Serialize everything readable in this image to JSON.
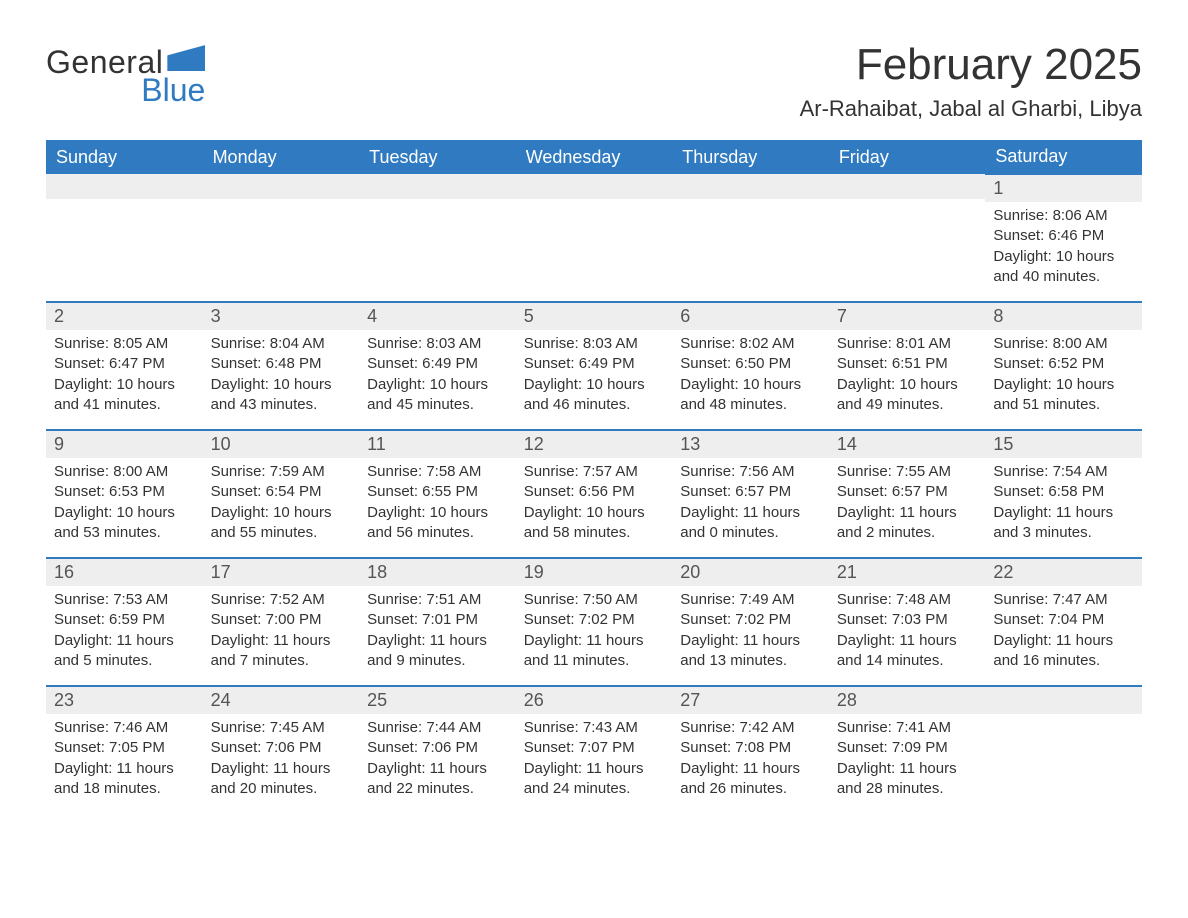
{
  "logo": {
    "word1": "General",
    "word2": "Blue"
  },
  "title": "February 2025",
  "location": "Ar-Rahaibat, Jabal al Gharbi, Libya",
  "colors": {
    "brand_blue": "#2f7ac0",
    "header_bg": "#2f7ac0",
    "header_text": "#ffffff",
    "daynum_bg": "#eeeeee",
    "daynum_text": "#555555",
    "body_text": "#333333",
    "row_divider": "#2f7ac0",
    "page_bg": "#ffffff"
  },
  "typography": {
    "title_fontsize": 44,
    "location_fontsize": 22,
    "dayname_fontsize": 18,
    "daynum_fontsize": 18,
    "body_fontsize": 15,
    "font_family": "Arial"
  },
  "layout": {
    "columns": 7,
    "rows": 5,
    "first_day_column_index": 6
  },
  "day_names": [
    "Sunday",
    "Monday",
    "Tuesday",
    "Wednesday",
    "Thursday",
    "Friday",
    "Saturday"
  ],
  "days": [
    {
      "n": 1,
      "sunrise": "8:06 AM",
      "sunset": "6:46 PM",
      "daylight": "10 hours and 40 minutes."
    },
    {
      "n": 2,
      "sunrise": "8:05 AM",
      "sunset": "6:47 PM",
      "daylight": "10 hours and 41 minutes."
    },
    {
      "n": 3,
      "sunrise": "8:04 AM",
      "sunset": "6:48 PM",
      "daylight": "10 hours and 43 minutes."
    },
    {
      "n": 4,
      "sunrise": "8:03 AM",
      "sunset": "6:49 PM",
      "daylight": "10 hours and 45 minutes."
    },
    {
      "n": 5,
      "sunrise": "8:03 AM",
      "sunset": "6:49 PM",
      "daylight": "10 hours and 46 minutes."
    },
    {
      "n": 6,
      "sunrise": "8:02 AM",
      "sunset": "6:50 PM",
      "daylight": "10 hours and 48 minutes."
    },
    {
      "n": 7,
      "sunrise": "8:01 AM",
      "sunset": "6:51 PM",
      "daylight": "10 hours and 49 minutes."
    },
    {
      "n": 8,
      "sunrise": "8:00 AM",
      "sunset": "6:52 PM",
      "daylight": "10 hours and 51 minutes."
    },
    {
      "n": 9,
      "sunrise": "8:00 AM",
      "sunset": "6:53 PM",
      "daylight": "10 hours and 53 minutes."
    },
    {
      "n": 10,
      "sunrise": "7:59 AM",
      "sunset": "6:54 PM",
      "daylight": "10 hours and 55 minutes."
    },
    {
      "n": 11,
      "sunrise": "7:58 AM",
      "sunset": "6:55 PM",
      "daylight": "10 hours and 56 minutes."
    },
    {
      "n": 12,
      "sunrise": "7:57 AM",
      "sunset": "6:56 PM",
      "daylight": "10 hours and 58 minutes."
    },
    {
      "n": 13,
      "sunrise": "7:56 AM",
      "sunset": "6:57 PM",
      "daylight": "11 hours and 0 minutes."
    },
    {
      "n": 14,
      "sunrise": "7:55 AM",
      "sunset": "6:57 PM",
      "daylight": "11 hours and 2 minutes."
    },
    {
      "n": 15,
      "sunrise": "7:54 AM",
      "sunset": "6:58 PM",
      "daylight": "11 hours and 3 minutes."
    },
    {
      "n": 16,
      "sunrise": "7:53 AM",
      "sunset": "6:59 PM",
      "daylight": "11 hours and 5 minutes."
    },
    {
      "n": 17,
      "sunrise": "7:52 AM",
      "sunset": "7:00 PM",
      "daylight": "11 hours and 7 minutes."
    },
    {
      "n": 18,
      "sunrise": "7:51 AM",
      "sunset": "7:01 PM",
      "daylight": "11 hours and 9 minutes."
    },
    {
      "n": 19,
      "sunrise": "7:50 AM",
      "sunset": "7:02 PM",
      "daylight": "11 hours and 11 minutes."
    },
    {
      "n": 20,
      "sunrise": "7:49 AM",
      "sunset": "7:02 PM",
      "daylight": "11 hours and 13 minutes."
    },
    {
      "n": 21,
      "sunrise": "7:48 AM",
      "sunset": "7:03 PM",
      "daylight": "11 hours and 14 minutes."
    },
    {
      "n": 22,
      "sunrise": "7:47 AM",
      "sunset": "7:04 PM",
      "daylight": "11 hours and 16 minutes."
    },
    {
      "n": 23,
      "sunrise": "7:46 AM",
      "sunset": "7:05 PM",
      "daylight": "11 hours and 18 minutes."
    },
    {
      "n": 24,
      "sunrise": "7:45 AM",
      "sunset": "7:06 PM",
      "daylight": "11 hours and 20 minutes."
    },
    {
      "n": 25,
      "sunrise": "7:44 AM",
      "sunset": "7:06 PM",
      "daylight": "11 hours and 22 minutes."
    },
    {
      "n": 26,
      "sunrise": "7:43 AM",
      "sunset": "7:07 PM",
      "daylight": "11 hours and 24 minutes."
    },
    {
      "n": 27,
      "sunrise": "7:42 AM",
      "sunset": "7:08 PM",
      "daylight": "11 hours and 26 minutes."
    },
    {
      "n": 28,
      "sunrise": "7:41 AM",
      "sunset": "7:09 PM",
      "daylight": "11 hours and 28 minutes."
    }
  ],
  "labels": {
    "sunrise": "Sunrise:",
    "sunset": "Sunset:",
    "daylight": "Daylight:"
  }
}
